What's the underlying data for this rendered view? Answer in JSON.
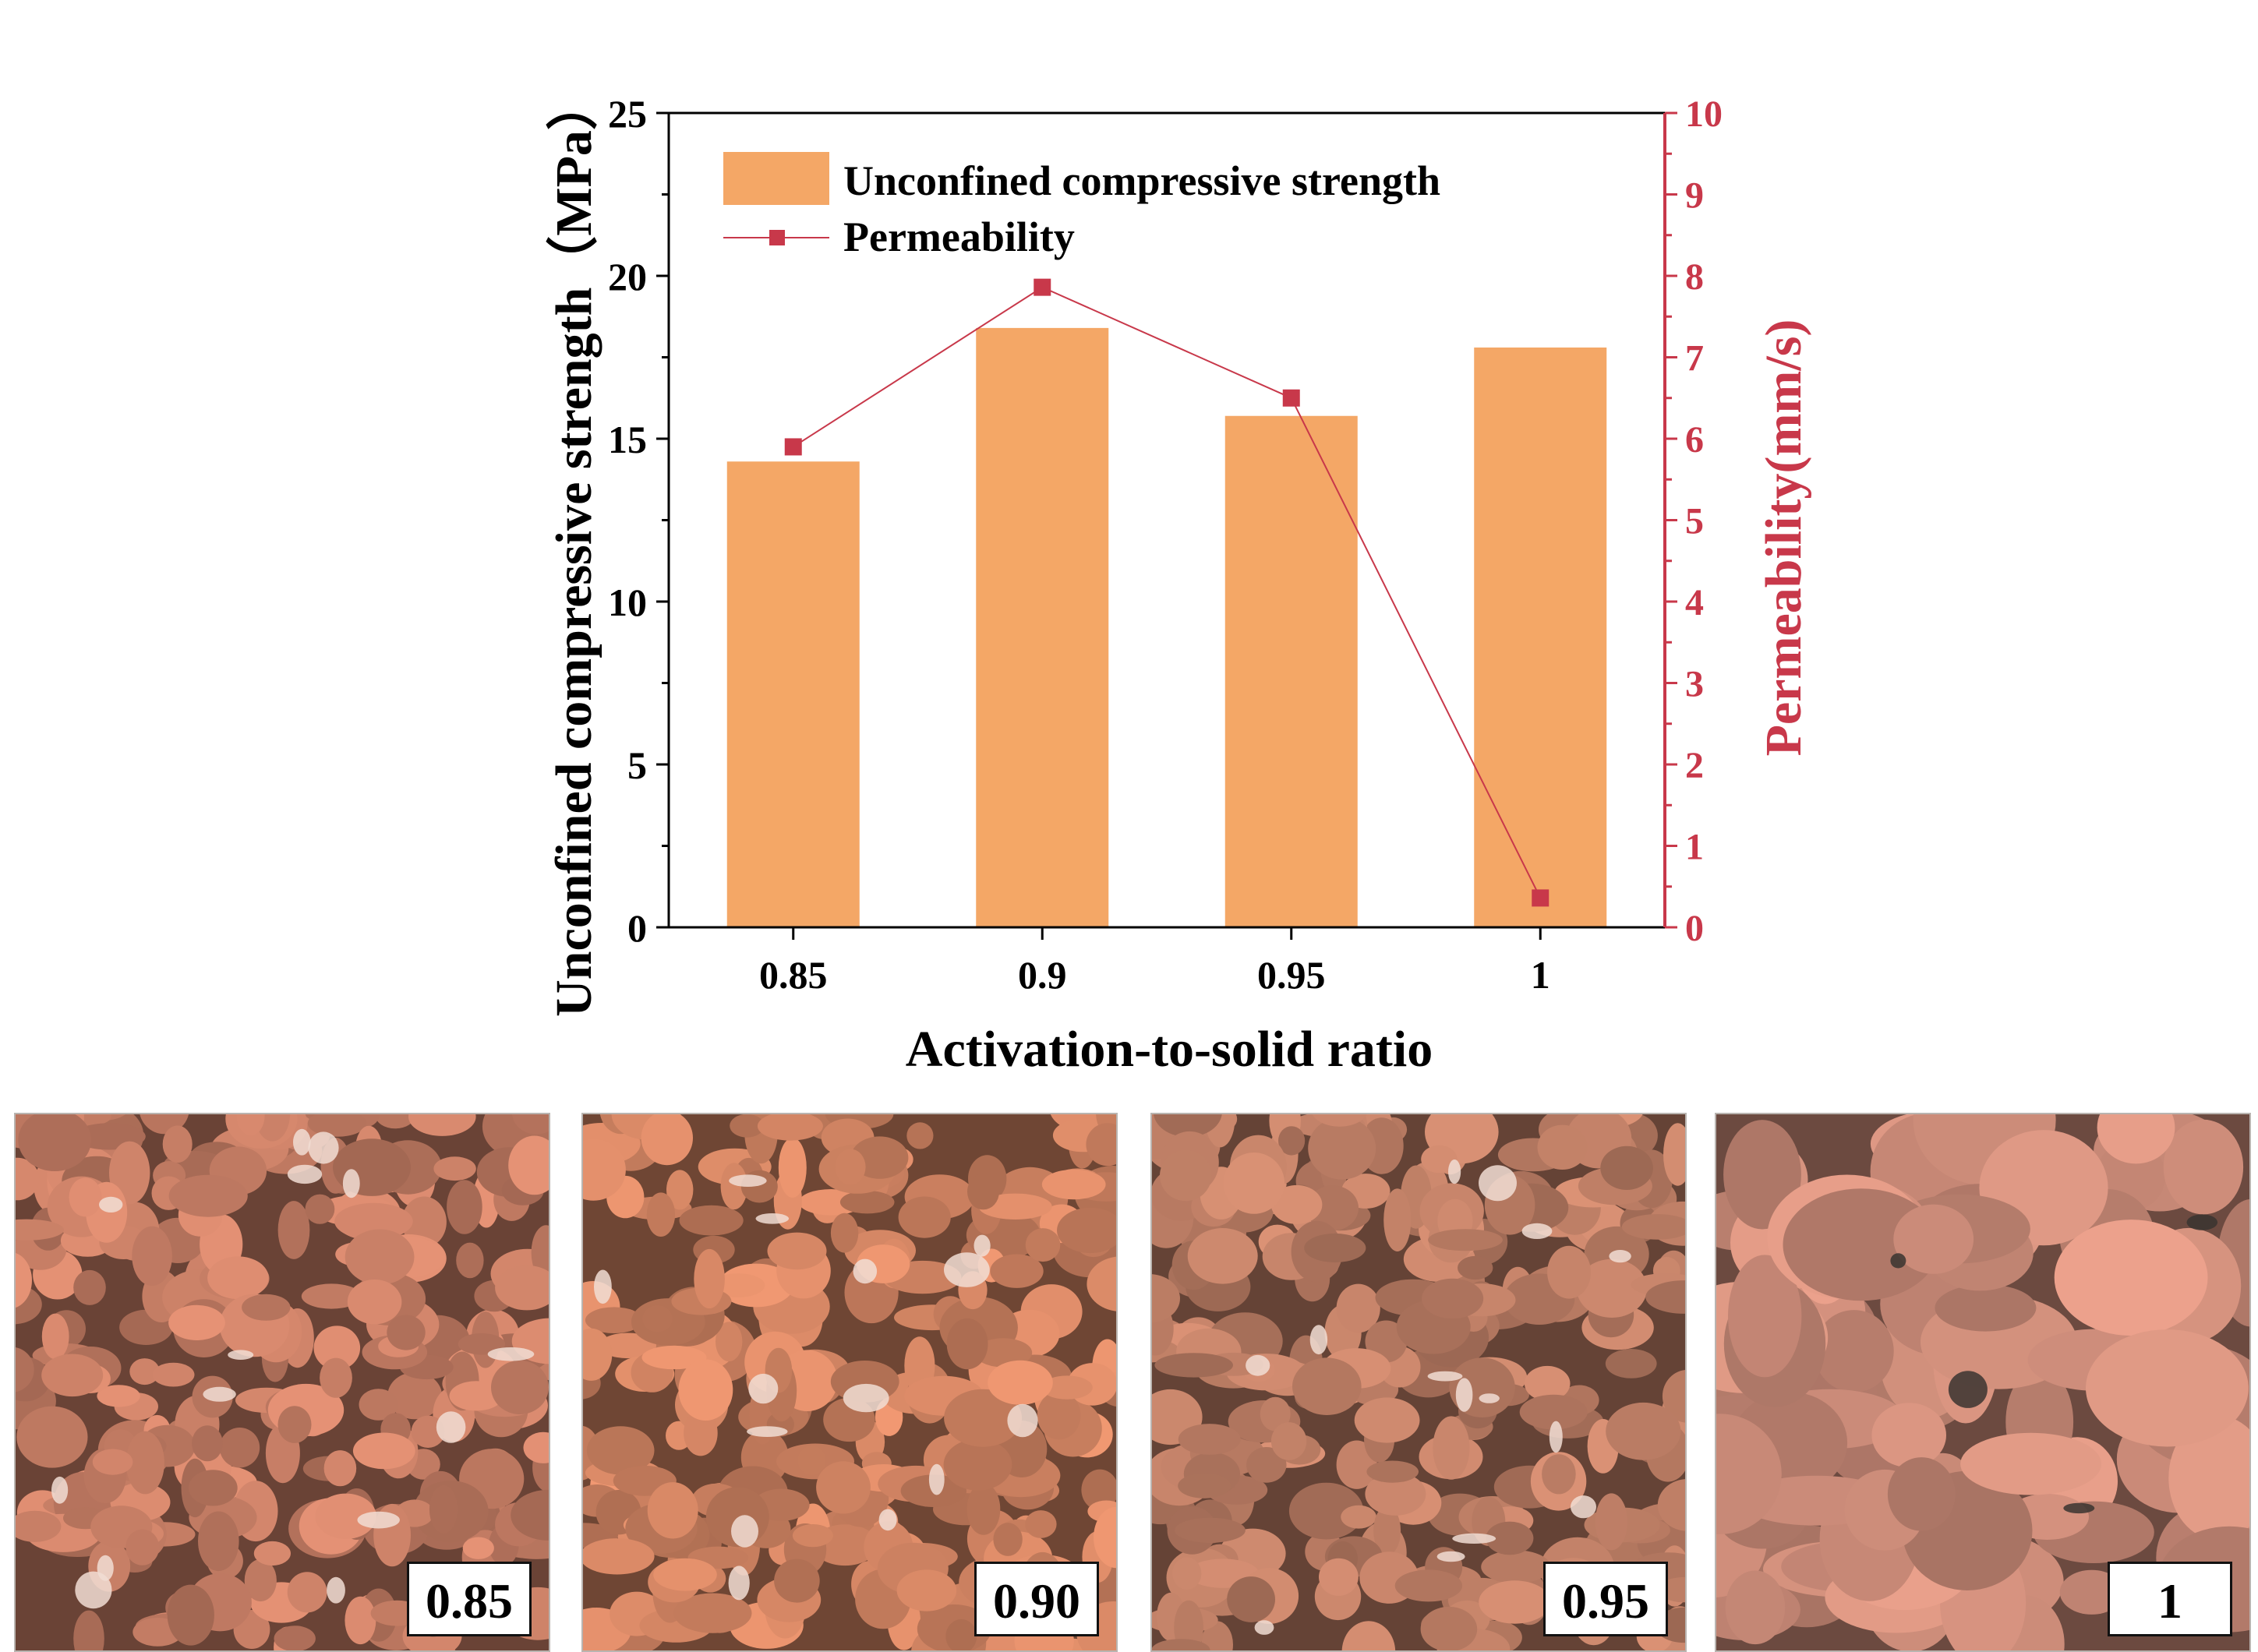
{
  "chart_data": {
    "type": "bar",
    "title": "",
    "xlabel": "Activation-to-solid ratio",
    "ylabel": "Unconfined compressive strength（MPa）",
    "y2label": "Permeability(mm/s)",
    "categories": [
      "0.85",
      "0.9",
      "0.95",
      "1"
    ],
    "ylim": [
      0,
      25
    ],
    "y2lim": [
      0,
      10
    ],
    "yticks": [
      "0",
      "5",
      "10",
      "15",
      "20",
      "25"
    ],
    "y2ticks": [
      "0",
      "1",
      "2",
      "3",
      "4",
      "5",
      "6",
      "7",
      "8",
      "9",
      "10"
    ],
    "legend_position": "top-left",
    "series": [
      {
        "name": "Unconfined compressive strength",
        "kind": "bar",
        "axis": "left",
        "color": "#f4a766",
        "values": [
          14.3,
          18.4,
          15.7,
          17.8
        ]
      },
      {
        "name": "Permeability",
        "kind": "line",
        "axis": "right",
        "color": "#c8384a",
        "values": [
          5.9,
          7.86,
          6.5,
          0.36
        ]
      }
    ]
  },
  "photos": [
    {
      "label": "0.85",
      "base_color": "#c07a62"
    },
    {
      "label": "0.90",
      "base_color": "#c97f5f"
    },
    {
      "label": "0.95",
      "base_color": "#b77a62"
    },
    {
      "label": "1",
      "base_color": "#c58775"
    }
  ],
  "colors": {
    "axis": "#000000",
    "right_axis": "#c8384a"
  }
}
